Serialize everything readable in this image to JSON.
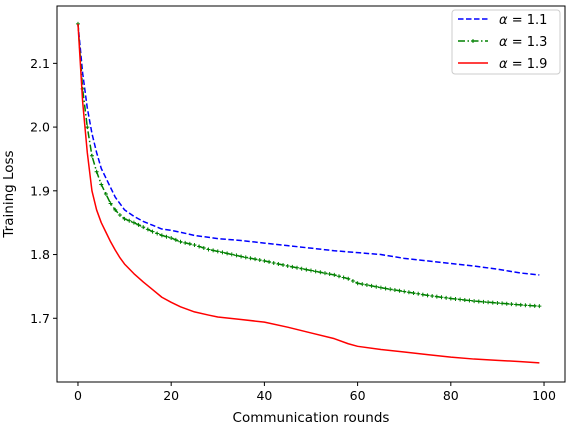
{
  "chart_data": {
    "type": "line",
    "title": "",
    "xlabel": "Communication rounds",
    "ylabel": "Training Loss",
    "xlim": [
      -4.5,
      104.5
    ],
    "ylim": [
      1.6,
      2.19
    ],
    "xticks": [
      0,
      20,
      40,
      60,
      80,
      100
    ],
    "xtick_labels": [
      "0",
      "20",
      "40",
      "60",
      "80",
      "100"
    ],
    "yticks": [
      1.7,
      1.8,
      1.9,
      2.0,
      2.1
    ],
    "ytick_labels": [
      "1.7",
      "1.8",
      "1.9",
      "2.0",
      "2.1"
    ],
    "grid": false,
    "legend_position": "top-right",
    "legend_alpha_symbol": "α",
    "series": [
      {
        "name": "α = 1.1",
        "legend_value": "1.1",
        "color": "#0000ff",
        "linestyle": "dashed",
        "marker": "none",
        "points": [
          [
            0,
            2.162
          ],
          [
            1,
            2.085
          ],
          [
            2,
            2.03
          ],
          [
            3,
            1.99
          ],
          [
            4,
            1.96
          ],
          [
            5,
            1.935
          ],
          [
            6,
            1.92
          ],
          [
            7,
            1.905
          ],
          [
            8,
            1.89
          ],
          [
            9,
            1.88
          ],
          [
            10,
            1.87
          ],
          [
            12,
            1.86
          ],
          [
            14,
            1.852
          ],
          [
            16,
            1.846
          ],
          [
            18,
            1.84
          ],
          [
            20,
            1.838
          ],
          [
            22,
            1.835
          ],
          [
            25,
            1.83
          ],
          [
            30,
            1.825
          ],
          [
            35,
            1.822
          ],
          [
            40,
            1.818
          ],
          [
            45,
            1.814
          ],
          [
            50,
            1.81
          ],
          [
            55,
            1.806
          ],
          [
            60,
            1.803
          ],
          [
            65,
            1.8
          ],
          [
            70,
            1.794
          ],
          [
            75,
            1.79
          ],
          [
            80,
            1.786
          ],
          [
            85,
            1.782
          ],
          [
            90,
            1.777
          ],
          [
            95,
            1.771
          ],
          [
            99,
            1.768
          ]
        ]
      },
      {
        "name": "α = 1.3",
        "legend_value": "1.3",
        "color": "#008000",
        "linestyle": "dashdot",
        "marker": "plus",
        "points": [
          [
            0,
            2.162
          ],
          [
            1,
            2.06
          ],
          [
            2,
            2.0
          ],
          [
            3,
            1.955
          ],
          [
            4,
            1.93
          ],
          [
            5,
            1.91
          ],
          [
            6,
            1.895
          ],
          [
            7,
            1.88
          ],
          [
            8,
            1.87
          ],
          [
            9,
            1.862
          ],
          [
            10,
            1.856
          ],
          [
            12,
            1.85
          ],
          [
            14,
            1.843
          ],
          [
            16,
            1.836
          ],
          [
            18,
            1.83
          ],
          [
            20,
            1.826
          ],
          [
            22,
            1.82
          ],
          [
            25,
            1.815
          ],
          [
            28,
            1.808
          ],
          [
            30,
            1.805
          ],
          [
            35,
            1.797
          ],
          [
            40,
            1.79
          ],
          [
            45,
            1.782
          ],
          [
            50,
            1.775
          ],
          [
            55,
            1.768
          ],
          [
            58,
            1.762
          ],
          [
            60,
            1.755
          ],
          [
            65,
            1.748
          ],
          [
            70,
            1.742
          ],
          [
            75,
            1.736
          ],
          [
            80,
            1.731
          ],
          [
            85,
            1.727
          ],
          [
            90,
            1.724
          ],
          [
            95,
            1.721
          ],
          [
            99,
            1.719
          ]
        ]
      },
      {
        "name": "α = 1.9",
        "legend_value": "1.9",
        "color": "#ff0000",
        "linestyle": "solid",
        "marker": "none",
        "points": [
          [
            0,
            2.162
          ],
          [
            1,
            2.04
          ],
          [
            2,
            1.96
          ],
          [
            3,
            1.9
          ],
          [
            4,
            1.87
          ],
          [
            5,
            1.85
          ],
          [
            6,
            1.835
          ],
          [
            7,
            1.82
          ],
          [
            8,
            1.807
          ],
          [
            9,
            1.795
          ],
          [
            10,
            1.785
          ],
          [
            12,
            1.77
          ],
          [
            14,
            1.757
          ],
          [
            16,
            1.745
          ],
          [
            18,
            1.733
          ],
          [
            20,
            1.725
          ],
          [
            22,
            1.718
          ],
          [
            25,
            1.71
          ],
          [
            28,
            1.705
          ],
          [
            30,
            1.702
          ],
          [
            35,
            1.698
          ],
          [
            40,
            1.694
          ],
          [
            45,
            1.686
          ],
          [
            50,
            1.677
          ],
          [
            55,
            1.668
          ],
          [
            58,
            1.66
          ],
          [
            60,
            1.656
          ],
          [
            65,
            1.651
          ],
          [
            70,
            1.647
          ],
          [
            75,
            1.643
          ],
          [
            80,
            1.639
          ],
          [
            85,
            1.636
          ],
          [
            90,
            1.634
          ],
          [
            95,
            1.632
          ],
          [
            99,
            1.63
          ]
        ]
      }
    ]
  }
}
